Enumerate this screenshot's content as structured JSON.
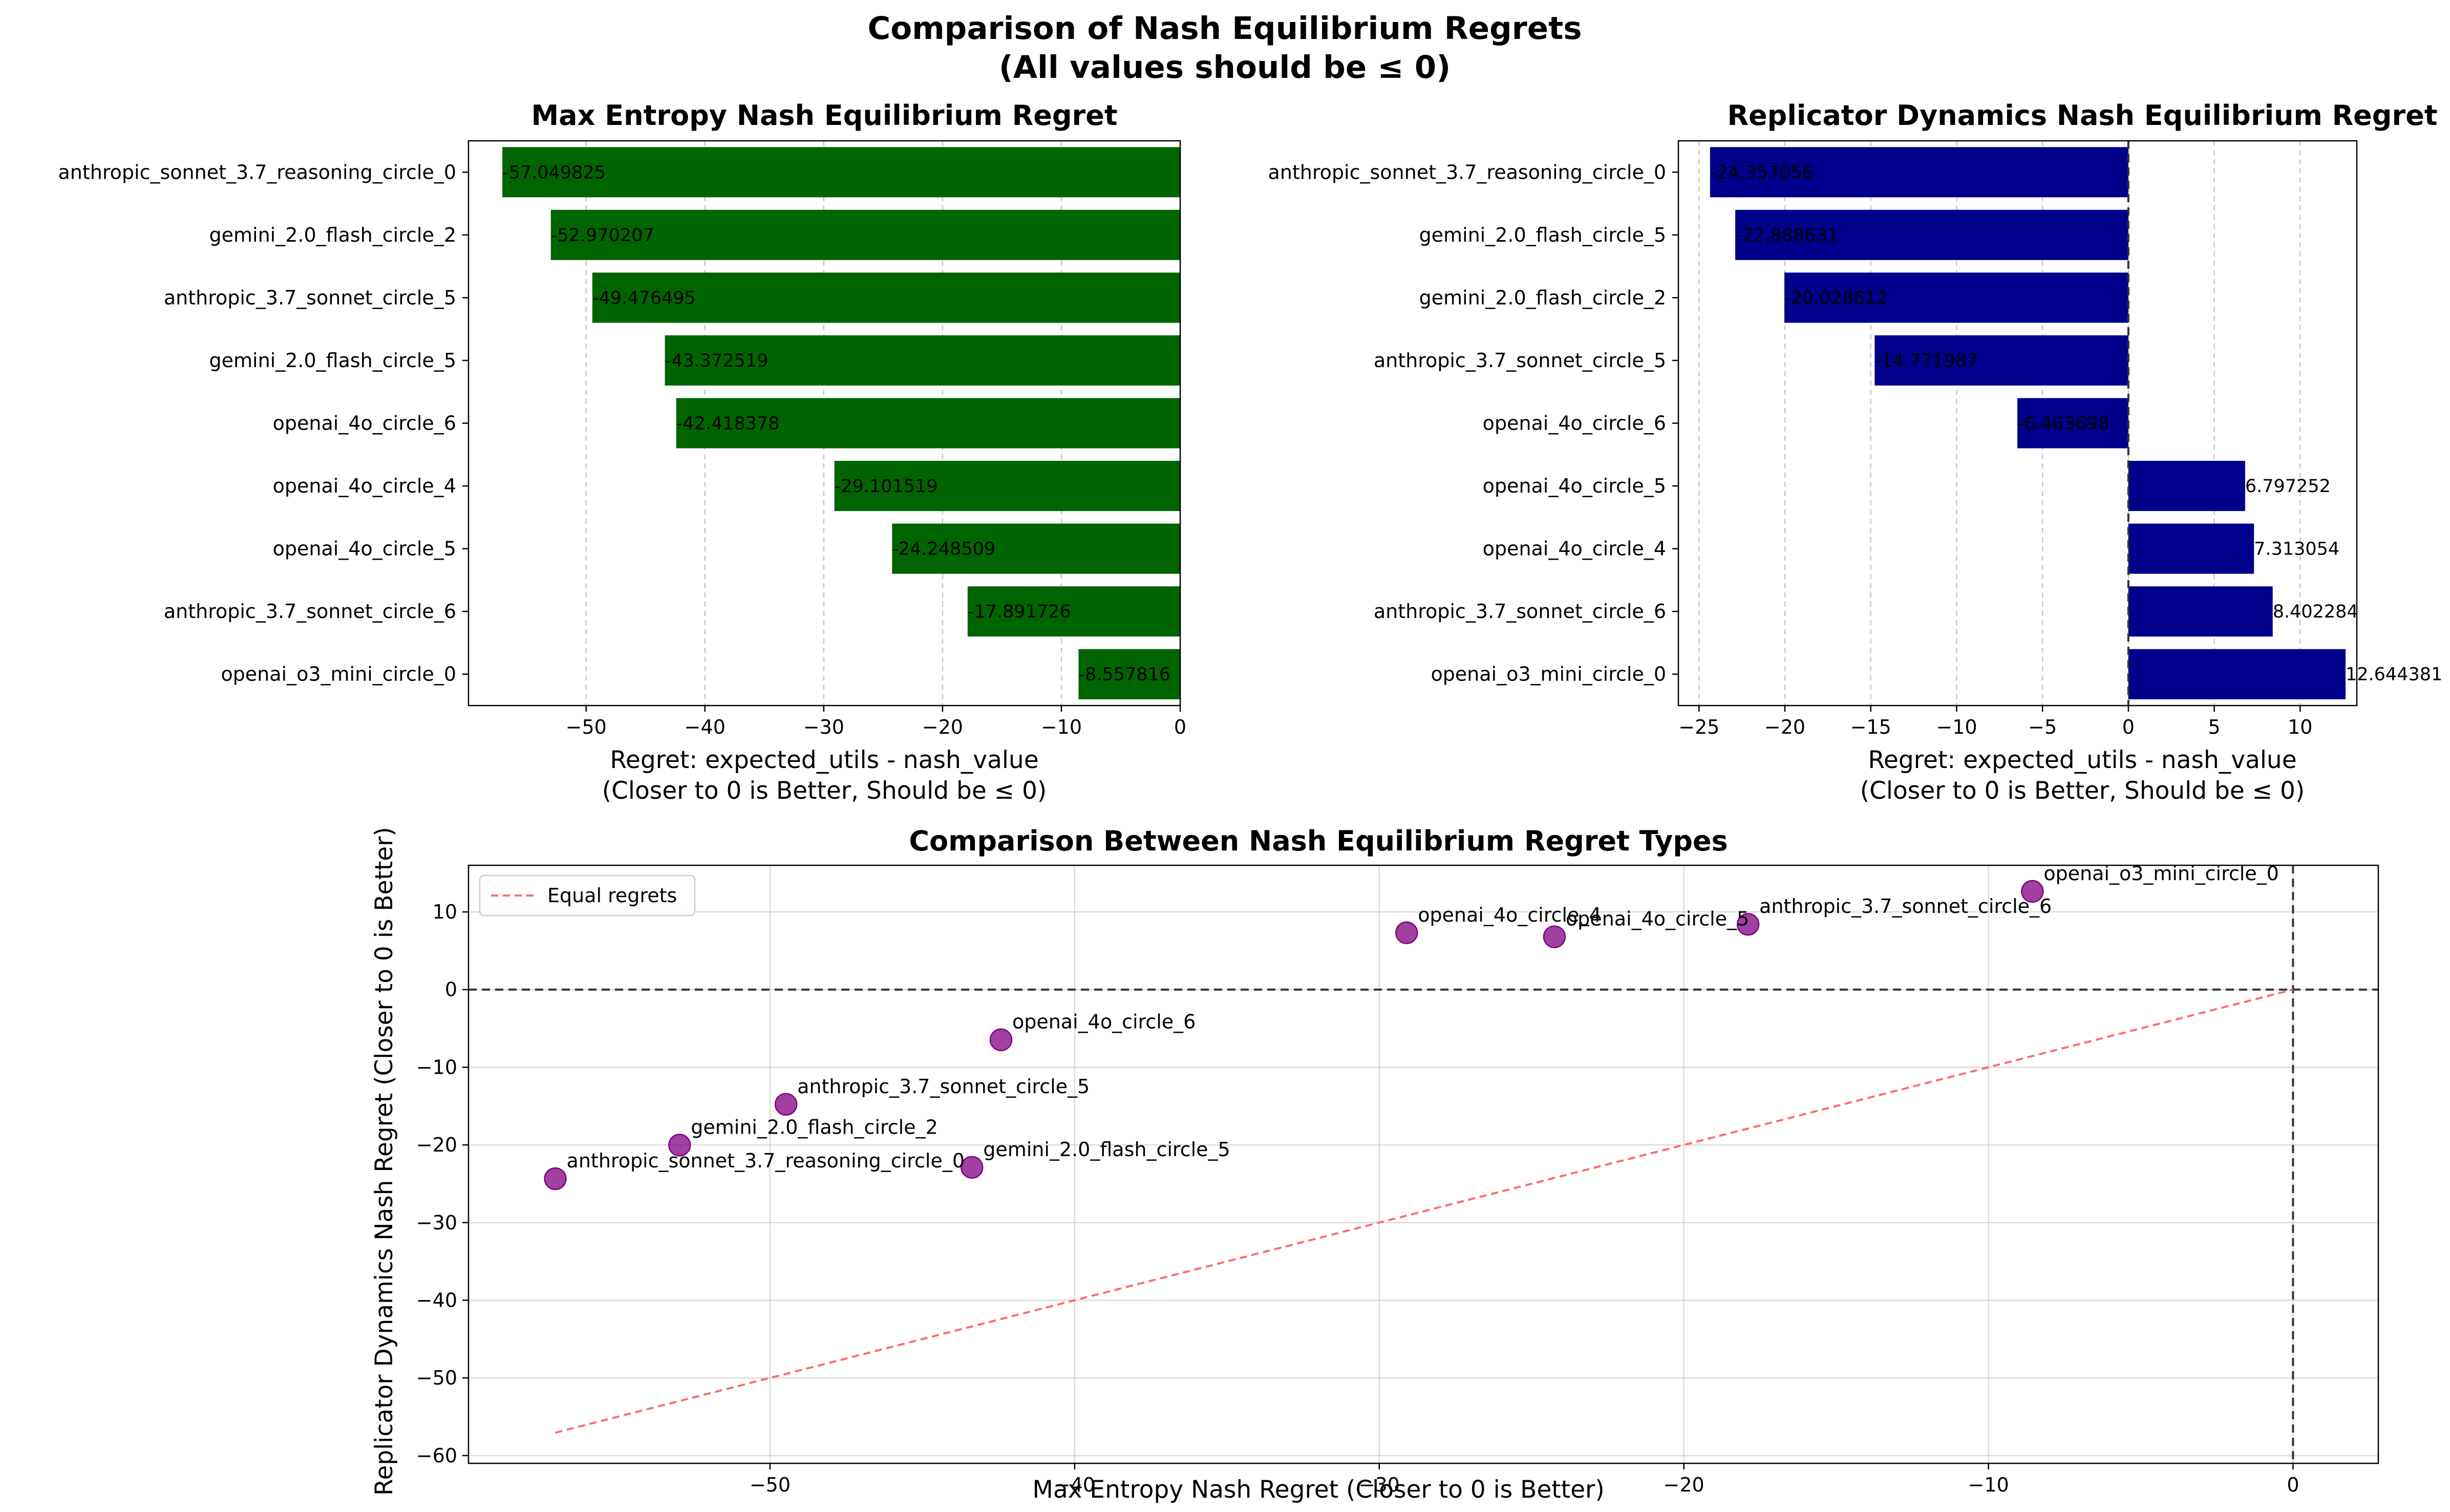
{
  "figure": {
    "title_line1": "Comparison of Nash Equilibrium Regrets",
    "title_line2": "(All values should be ≤ 0)"
  },
  "chart_data": [
    {
      "type": "bar",
      "orientation": "horizontal",
      "title": "Max Entropy Nash Equilibrium Regret",
      "xlabel_line1": "Regret: expected_utils - nash_value",
      "xlabel_line2": "(Closer to 0 is Better, Should be ≤ 0)",
      "xlim": [
        -59.9,
        0
      ],
      "xticks": [
        -50,
        -40,
        -30,
        -20,
        -10,
        0
      ],
      "grid": "x, dashed",
      "color": "#006400",
      "categories": [
        "anthropic_sonnet_3.7_reasoning_circle_0",
        "gemini_2.0_flash_circle_2",
        "anthropic_3.7_sonnet_circle_5",
        "gemini_2.0_flash_circle_5",
        "openai_4o_circle_6",
        "openai_4o_circle_4",
        "openai_4o_circle_5",
        "anthropic_3.7_sonnet_circle_6",
        "openai_o3_mini_circle_0"
      ],
      "values": [
        -57.049825,
        -52.970207,
        -49.476495,
        -43.372519,
        -42.418378,
        -29.101519,
        -24.248509,
        -17.891726,
        -8.557816
      ],
      "value_labels": [
        "-57.049825",
        "-52.970207",
        "-49.476495",
        "-43.372519",
        "-42.418378",
        "-29.101519",
        "-24.248509",
        "-17.891726",
        "-8.557816"
      ]
    },
    {
      "type": "bar",
      "orientation": "horizontal",
      "title": "Replicator Dynamics Nash Equilibrium Regret",
      "xlabel_line1": "Regret: expected_utils - nash_value",
      "xlabel_line2": "(Closer to 0 is Better, Should be ≤ 0)",
      "xlim": [
        -26.2,
        13.3
      ],
      "xticks": [
        -25,
        -20,
        -15,
        -10,
        -5,
        0,
        5,
        10
      ],
      "grid": "x, dashed",
      "zero_line": "dashed",
      "color": "#00008B",
      "categories": [
        "anthropic_sonnet_3.7_reasoning_circle_0",
        "gemini_2.0_flash_circle_5",
        "gemini_2.0_flash_circle_2",
        "anthropic_3.7_sonnet_circle_5",
        "openai_4o_circle_6",
        "openai_4o_circle_5",
        "openai_4o_circle_4",
        "anthropic_3.7_sonnet_circle_6",
        "openai_o3_mini_circle_0"
      ],
      "values": [
        -24.357056,
        -22.888631,
        -20.028612,
        -14.771987,
        -6.463698,
        6.797252,
        7.313054,
        8.402284,
        12.644381
      ],
      "value_labels": [
        "-24.357056",
        "-22.888631",
        "-20.028612",
        "-14.771987",
        "-6.463698",
        "6.797252",
        "7.313054",
        "8.402284",
        "12.644381"
      ]
    },
    {
      "type": "scatter",
      "title": "Comparison Between Nash Equilibrium Regret Types",
      "xlabel": "Max Entropy Nash Regret (Closer to 0 is Better)",
      "ylabel": "Replicator Dynamics Nash Regret (Closer to 0 is Better)",
      "xlim": [
        -59.9,
        2.8
      ],
      "ylim": [
        -61.0,
        16.0
      ],
      "xticks": [
        -50,
        -40,
        -30,
        -20,
        -10,
        0
      ],
      "yticks": [
        -60,
        -50,
        -40,
        -30,
        -20,
        -10,
        0,
        10
      ],
      "grid": true,
      "legend": "top-left",
      "point_color": "#800080",
      "reference_line": {
        "name": "Equal regrets",
        "x": [
          -57.049825,
          0
        ],
        "y": [
          -57.049825,
          0
        ],
        "color": "#FF6B6B",
        "style": "dashed"
      },
      "points": [
        {
          "label": "anthropic_sonnet_3.7_reasoning_circle_0",
          "x": -57.049825,
          "y": -24.357056
        },
        {
          "label": "gemini_2.0_flash_circle_2",
          "x": -52.970207,
          "y": -20.028612
        },
        {
          "label": "anthropic_3.7_sonnet_circle_5",
          "x": -49.476495,
          "y": -14.771987
        },
        {
          "label": "gemini_2.0_flash_circle_5",
          "x": -43.372519,
          "y": -22.888631
        },
        {
          "label": "openai_4o_circle_6",
          "x": -42.418378,
          "y": -6.463698
        },
        {
          "label": "openai_4o_circle_4",
          "x": -29.101519,
          "y": 7.313054
        },
        {
          "label": "openai_4o_circle_5",
          "x": -24.248509,
          "y": 6.797252
        },
        {
          "label": "anthropic_3.7_sonnet_circle_6",
          "x": -17.891726,
          "y": 8.402284
        },
        {
          "label": "openai_o3_mini_circle_0",
          "x": -8.557816,
          "y": 12.644381
        }
      ]
    }
  ]
}
